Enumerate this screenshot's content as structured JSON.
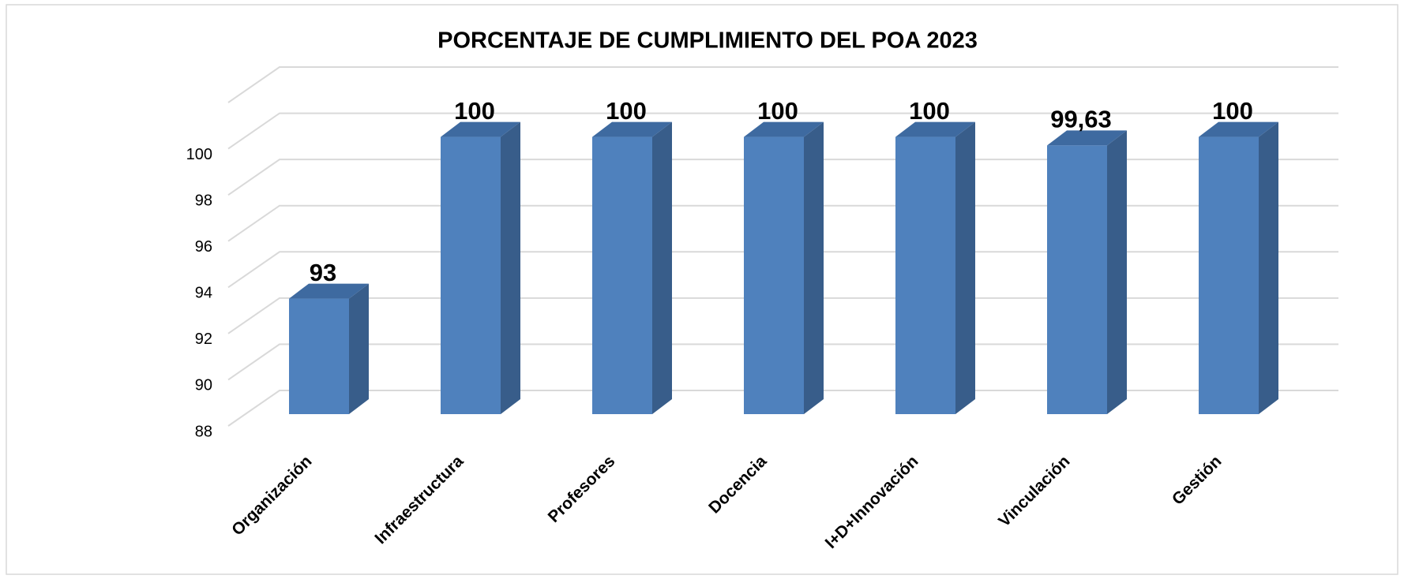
{
  "chart_data": {
    "type": "bar3d",
    "title": "PORCENTAJE DE CUMPLIMIENTO DEL POA 2023",
    "categories": [
      "Organización",
      "Infraestructura",
      "Profesores",
      "Docencia",
      "I+D+Innovación",
      "Vinculación",
      "Gestión"
    ],
    "values": [
      93,
      100,
      100,
      100,
      100,
      99.63,
      100
    ],
    "value_labels": [
      "93",
      "100",
      "100",
      "100",
      "100",
      "99,63",
      "100"
    ],
    "color": "#4f81bd",
    "ylim": [
      88,
      102
    ],
    "yticks": [
      88,
      90,
      92,
      94,
      96,
      98,
      100
    ],
    "grid": true
  }
}
